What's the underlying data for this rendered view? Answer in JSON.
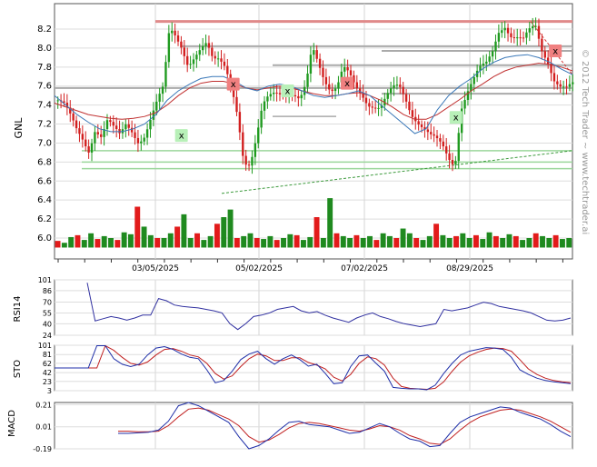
{
  "chart_data": {
    "type": "candlestick",
    "ticker": "GNL",
    "watermark": "© 2012 Tech Trader ~ www.techtrader.ai",
    "x_dates": [
      "03/05/2025",
      "05/02/2025",
      "07/02/2025",
      "08/29/2025"
    ],
    "price_ylim": [
      6.4,
      8.4
    ],
    "price_ticks": [
      "8.2",
      "8.0",
      "7.8",
      "7.6",
      "7.4",
      "7.2",
      "7.0",
      "6.8",
      "6.6",
      "6.4",
      "6.2",
      "6.0"
    ],
    "price_path": [
      7.45,
      7.38,
      7.25,
      7.12,
      7.05,
      6.95,
      7.18,
      7.08,
      7.22,
      7.12,
      7.05,
      7.2,
      7.15,
      7.05,
      7.1,
      7.25,
      7.4,
      7.55,
      8.2,
      8.15,
      8.05,
      7.85,
      7.9,
      7.95,
      8.0,
      7.85,
      7.9,
      7.85,
      7.65,
      7.3,
      6.75,
      6.7,
      7.0,
      7.4,
      7.55,
      7.6,
      7.55,
      7.5,
      7.45,
      7.4,
      7.6,
      8.05,
      7.9,
      7.7,
      7.55,
      7.55,
      7.75,
      7.7,
      7.6,
      7.55,
      7.45,
      7.4,
      7.35,
      7.45,
      7.55,
      7.6,
      7.5,
      7.35,
      7.25,
      7.15,
      7.05,
      7.0,
      6.95,
      6.85,
      6.8,
      7.4,
      7.55,
      7.65,
      7.75,
      7.8,
      7.95,
      8.2,
      8.28,
      8.15,
      8.1,
      8.05,
      8.15,
      8.22,
      8.0,
      7.9,
      7.7,
      7.6,
      7.55,
      7.58
    ],
    "ma_fast": [
      7.5,
      7.4,
      7.3,
      7.22,
      7.15,
      7.12,
      7.12,
      7.15,
      7.2,
      7.3,
      7.45,
      7.55,
      7.62,
      7.68,
      7.7,
      7.7,
      7.65,
      7.58,
      7.55,
      7.6,
      7.62,
      7.6,
      7.55,
      7.5,
      7.48,
      7.5,
      7.52,
      7.55,
      7.5,
      7.4,
      7.3,
      7.2,
      7.1,
      7.15,
      7.35,
      7.5,
      7.6,
      7.68,
      7.78,
      7.85,
      7.9,
      7.92,
      7.93,
      7.9,
      7.85,
      7.78,
      7.72
    ],
    "ma_slow": [
      7.42,
      7.38,
      7.34,
      7.3,
      7.28,
      7.26,
      7.25,
      7.26,
      7.28,
      7.32,
      7.4,
      7.5,
      7.58,
      7.63,
      7.65,
      7.65,
      7.62,
      7.58,
      7.56,
      7.58,
      7.6,
      7.58,
      7.55,
      7.52,
      7.5,
      7.5,
      7.52,
      7.53,
      7.5,
      7.45,
      7.38,
      7.3,
      7.25,
      7.25,
      7.3,
      7.38,
      7.46,
      7.55,
      7.62,
      7.7,
      7.76,
      7.8,
      7.82,
      7.84,
      7.83,
      7.8,
      7.76
    ],
    "resistance_levels": [
      8.28,
      8.02,
      7.97,
      7.82,
      7.58,
      7.52
    ],
    "support_levels": [
      7.28,
      6.92,
      6.8,
      6.73
    ],
    "signals": [
      {
        "label": "x",
        "type": "buy",
        "x_frac": 0.245,
        "price": 7.08
      },
      {
        "label": "x",
        "type": "sell",
        "x_frac": 0.345,
        "price": 7.62
      },
      {
        "label": "x",
        "type": "buy",
        "x_frac": 0.45,
        "price": 7.55
      },
      {
        "label": "x",
        "type": "sell",
        "x_frac": 0.565,
        "price": 7.63
      },
      {
        "label": "x",
        "type": "buy",
        "x_frac": 0.775,
        "price": 7.27
      },
      {
        "label": "x",
        "type": "sell",
        "x_frac": 0.967,
        "price": 7.97
      }
    ],
    "volume": {
      "baseline_price": 5.9,
      "bars": [
        5.97,
        5.95,
        6.01,
        6.03,
        5.98,
        6.05,
        5.99,
        6.02,
        6.0,
        5.98,
        6.06,
        6.04,
        6.33,
        6.12,
        6.03,
        6.0,
        6.0,
        6.05,
        6.12,
        6.25,
        6.0,
        6.05,
        5.98,
        6.02,
        6.15,
        6.22,
        6.3,
        6.0,
        6.02,
        6.05,
        6.0,
        5.99,
        6.02,
        5.98,
        6.0,
        6.04,
        6.03,
        5.98,
        6.01,
        6.22,
        6.0,
        6.42,
        6.05,
        6.02,
        6.0,
        6.03,
        6.0,
        6.02,
        5.98,
        6.05,
        6.02,
        6.0,
        6.1,
        6.05,
        6.0,
        5.98,
        6.02,
        6.15,
        6.03,
        6.0,
        6.02,
        6.05,
        6.0,
        6.03,
        5.99,
        6.06,
        6.02,
        6.0,
        6.04,
        6.02,
        5.98,
        6.0,
        6.05,
        6.02,
        6.0,
        6.03,
        5.99,
        6.0
      ]
    },
    "rsi": {
      "label": "RSI14",
      "ticks": [
        "101",
        "86",
        "70",
        "55",
        "40",
        "24"
      ],
      "ylim": [
        24,
        101
      ],
      "values": [
        97,
        44,
        47,
        50,
        48,
        45,
        48,
        52,
        52,
        75,
        72,
        66,
        64,
        63,
        62,
        60,
        58,
        55,
        40,
        32,
        40,
        50,
        52,
        55,
        60,
        62,
        64,
        58,
        55,
        57,
        52,
        48,
        45,
        42,
        48,
        52,
        55,
        50,
        47,
        43,
        40,
        38,
        36,
        38,
        40,
        60,
        58,
        60,
        62,
        66,
        70,
        68,
        64,
        62,
        60,
        58,
        55,
        50,
        45,
        44,
        45,
        48
      ]
    },
    "sto": {
      "label": "STO",
      "ticks": [
        "101",
        "81",
        "62",
        "42",
        "23",
        "3"
      ],
      "ylim": [
        3,
        101
      ],
      "k": [
        52,
        52,
        52,
        52,
        52,
        100,
        100,
        72,
        60,
        55,
        60,
        80,
        95,
        98,
        92,
        82,
        75,
        72,
        48,
        20,
        25,
        45,
        70,
        82,
        88,
        72,
        60,
        72,
        80,
        70,
        56,
        60,
        40,
        18,
        20,
        55,
        78,
        80,
        62,
        45,
        10,
        8,
        7,
        7,
        5,
        15,
        40,
        62,
        80,
        88,
        92,
        96,
        95,
        92,
        75,
        48,
        38,
        30,
        25,
        22,
        20,
        18
      ],
      "d": [
        52,
        52,
        52,
        52,
        52,
        52,
        100,
        90,
        75,
        62,
        58,
        65,
        80,
        92,
        94,
        88,
        80,
        76,
        62,
        40,
        28,
        35,
        55,
        72,
        82,
        78,
        68,
        68,
        74,
        74,
        64,
        58,
        50,
        32,
        24,
        38,
        62,
        76,
        72,
        58,
        30,
        12,
        8,
        7,
        6,
        8,
        22,
        45,
        65,
        78,
        86,
        92,
        95,
        94,
        88,
        70,
        50,
        38,
        30,
        25,
        22,
        20
      ]
    },
    "macd": {
      "label": "MACD",
      "ticks": [
        "0.21",
        "0.01",
        "-0.19"
      ],
      "ylim": [
        -0.19,
        0.23
      ],
      "macd": [
        -0.05,
        -0.05,
        -0.045,
        -0.04,
        -0.02,
        0.06,
        0.2,
        0.23,
        0.2,
        0.15,
        0.1,
        0.05,
        -0.08,
        -0.19,
        -0.16,
        -0.1,
        -0.02,
        0.05,
        0.06,
        0.03,
        0.02,
        0.01,
        -0.02,
        -0.05,
        -0.04,
        0.0,
        0.04,
        0.01,
        -0.05,
        -0.1,
        -0.12,
        -0.17,
        -0.16,
        -0.05,
        0.05,
        0.1,
        0.13,
        0.16,
        0.19,
        0.18,
        0.14,
        0.11,
        0.08,
        0.03,
        -0.03,
        -0.08
      ],
      "signal": [
        -0.03,
        -0.03,
        -0.035,
        -0.035,
        -0.03,
        0.02,
        0.1,
        0.17,
        0.18,
        0.16,
        0.12,
        0.08,
        0.02,
        -0.08,
        -0.13,
        -0.11,
        -0.06,
        0.0,
        0.04,
        0.05,
        0.04,
        0.02,
        0.0,
        -0.02,
        -0.03,
        -0.01,
        0.02,
        0.01,
        -0.02,
        -0.07,
        -0.1,
        -0.14,
        -0.15,
        -0.1,
        -0.02,
        0.05,
        0.1,
        0.13,
        0.16,
        0.17,
        0.16,
        0.13,
        0.1,
        0.06,
        0.01,
        -0.04
      ]
    }
  }
}
